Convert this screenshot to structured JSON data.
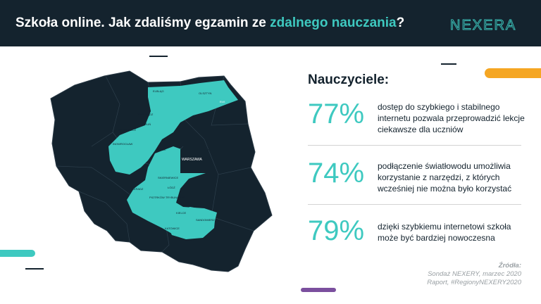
{
  "header": {
    "title_prefix": "Szkoła online. Jak zdaliśmy egzamin ze ",
    "title_highlight": "zdalnego nauczania",
    "title_suffix": "?",
    "logo_text": "NEXERA"
  },
  "colors": {
    "dark": "#14232e",
    "teal": "#3ec9c0",
    "orange": "#f5a623",
    "purple": "#7b4f9e"
  },
  "map": {
    "city_labels": [
      "ELBLĄG",
      "OLSZTYN",
      "EŁK",
      "BYDGOSZCZ",
      "GRUDZIĄDZ",
      "TORUŃ",
      "INOWROCŁAW",
      "PŁOCK",
      "WARSZAWA",
      "SKIERNIEWICE",
      "ŁÓDŹ",
      "SIERADZ",
      "PIOTRKÓW TRYBUNALSKI",
      "KIELCE",
      "SANDOMIERZ",
      "KATOWICE"
    ],
    "capital_label": "WARSZAWA"
  },
  "main": {
    "section_title": "Nauczyciele:",
    "stats": [
      {
        "value": "77%",
        "text": "dostęp do szybkiego i stabilnego internetu pozwala przeprowadzić lekcje ciekawsze dla uczniów"
      },
      {
        "value": "74%",
        "text": "podłączenie światłowodu umożliwia korzystanie z narzędzi, z których wcześniej nie można było korzystać"
      },
      {
        "value": "79%",
        "text": "dzięki szybkiemu internetowi szkoła może być bardziej nowoczesna"
      }
    ]
  },
  "source": {
    "title": "Źródła:",
    "line1": "Sondaż NEXERY, marzec 2020",
    "line2": "Raport, #RegionyNEXERY2020"
  }
}
